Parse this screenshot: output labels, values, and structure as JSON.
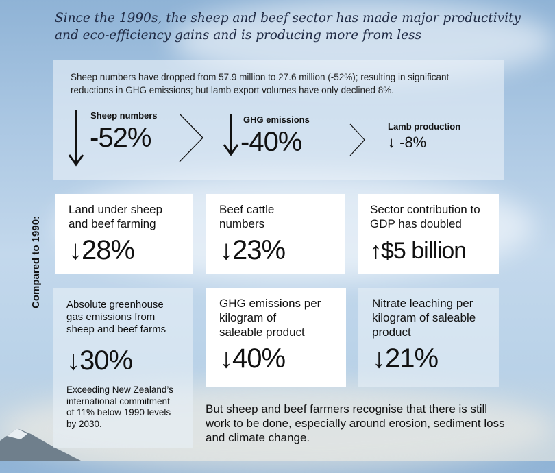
{
  "title": "Since the 1990s, the sheep and beef sector has made major productivity and eco-efficiency gains and is producing more from less",
  "summary": {
    "intro": "Sheep numbers have dropped from 57.9 million to 27.6 million (-52%); resulting in significant reductions in GHG emissions; but lamb export volumes have only declined 8%.",
    "items": [
      {
        "label": "Sheep numbers",
        "value": "-52%",
        "icon": "down-arrow-icon"
      },
      {
        "label": "GHG emissions",
        "value": "-40%",
        "icon": "down-arrow-icon"
      },
      {
        "label": "Lamb production",
        "value": "↓ -8%"
      }
    ]
  },
  "compared_label": "Compared to 1990:",
  "stats": [
    {
      "heading": "Land under sheep and beef farming",
      "value": "↓28%"
    },
    {
      "heading": "Beef cattle numbers",
      "value": "↓23%"
    },
    {
      "heading": "Sector contribution to GDP has doubled",
      "value": "↑$5 billion"
    },
    {
      "heading": "Absolute greenhouse gas emissions from sheep and beef farms",
      "value": "↓30%",
      "note": "Exceeding New Zealand’s international commitment of 11% below 1990 levels by 2030."
    },
    {
      "heading": "GHG emissions per kilogram of saleable product",
      "value": "↓40%"
    },
    {
      "heading": "Nitrate leaching per kilogram of saleable product",
      "value": "↓21%"
    }
  ],
  "closing": "But sheep and beef farmers recognise that there is still work to be done, especially around erosion, sediment loss and climate change.",
  "colors": {
    "title": "#1f2a44",
    "sky": "#a9c6e2"
  }
}
